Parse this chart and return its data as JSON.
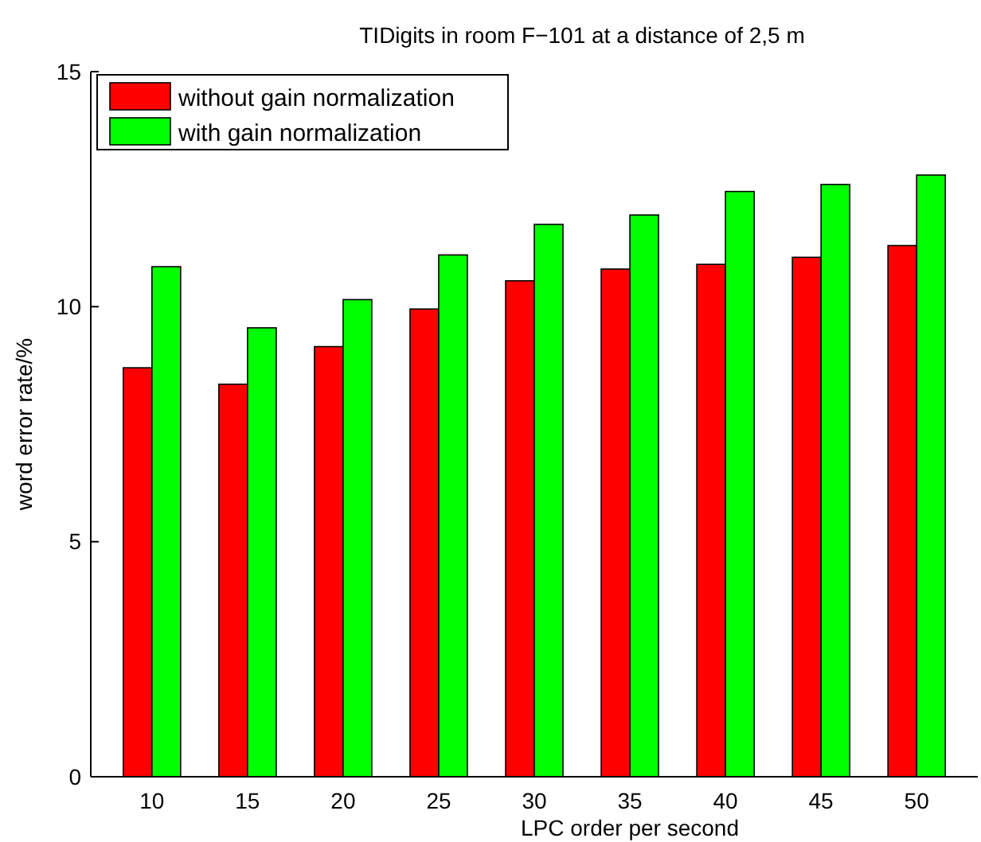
{
  "chart_data": {
    "type": "bar",
    "title": "TIDigits in room F−101 at a distance of 2,5 m",
    "xlabel": "LPC order per second",
    "ylabel": "word error rate/%",
    "categories": [
      "10",
      "15",
      "20",
      "25",
      "30",
      "35",
      "40",
      "45",
      "50"
    ],
    "series": [
      {
        "name": "without gain normalization",
        "color": "#ff0000",
        "values": [
          8.7,
          8.35,
          9.15,
          9.95,
          10.55,
          10.8,
          10.9,
          11.05,
          11.3
        ]
      },
      {
        "name": "with gain normalization",
        "color": "#00ff00",
        "values": [
          10.85,
          9.55,
          10.15,
          11.1,
          11.75,
          11.95,
          12.45,
          12.6,
          12.8
        ]
      }
    ],
    "ylim": [
      0,
      15
    ],
    "yticks": [
      0,
      5,
      10,
      15
    ],
    "legend": "top left"
  }
}
